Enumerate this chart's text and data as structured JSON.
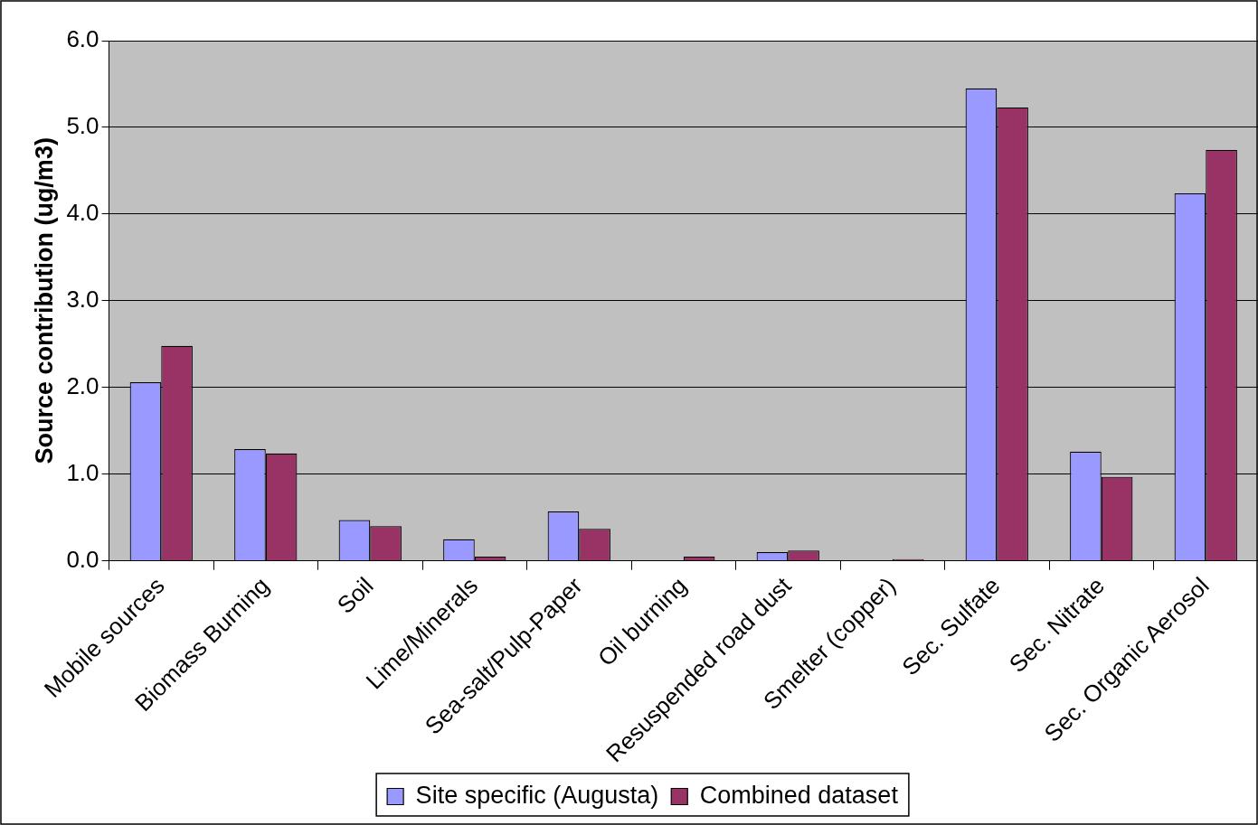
{
  "chart_data": {
    "type": "bar",
    "ylabel": "Source contribution (ug/m3)",
    "categories": [
      "Mobile sources",
      "Biomass Burning",
      "Soil",
      "Lime/Minerals",
      "Sea-salt/Pulp-Paper",
      "Oil burning",
      "Resuspended road dust",
      "Smelter (copper)",
      "Sec. Sulfate",
      "Sec. Nitrate",
      "Sec. Organic Aerosol"
    ],
    "series": [
      {
        "name": "Site specific (Augusta)",
        "color": "#9999ff",
        "values": [
          2.06,
          1.29,
          0.47,
          0.25,
          0.57,
          null,
          0.1,
          null,
          5.45,
          1.26,
          4.24
        ]
      },
      {
        "name": "Combined dataset",
        "color": "#993366",
        "values": [
          2.48,
          1.24,
          0.4,
          0.05,
          0.37,
          0.05,
          0.12,
          0.02,
          5.23,
          0.97,
          4.74
        ]
      }
    ],
    "ylim": [
      0,
      6
    ],
    "yticks": [
      {
        "value": 0,
        "label": "0.0"
      },
      {
        "value": 1,
        "label": "1.0"
      },
      {
        "value": 2,
        "label": "2.0"
      },
      {
        "value": 3,
        "label": "3.0"
      },
      {
        "value": 4,
        "label": "4.0"
      },
      {
        "value": 5,
        "label": "5.0"
      },
      {
        "value": 6,
        "label": "6.0"
      }
    ],
    "grid": "y",
    "legend": "bottom"
  }
}
